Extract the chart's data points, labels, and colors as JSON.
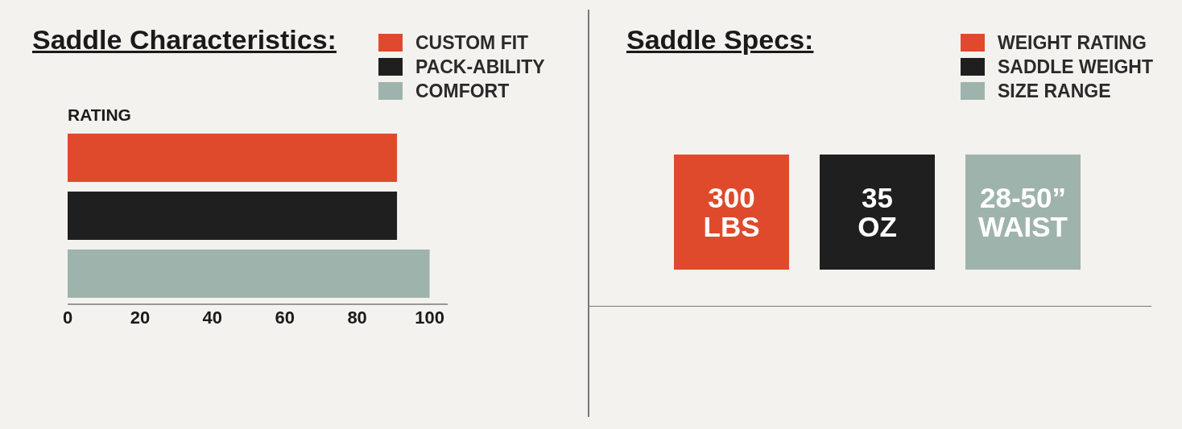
{
  "chart_data": [
    {
      "type": "bar",
      "title": "Saddle Characteristics:",
      "xlabel": "RATING",
      "orientation": "horizontal",
      "categories": [
        null
      ],
      "series": [
        {
          "name": "CUSTOM FIT",
          "color": "#e04a2c",
          "values": [
            91
          ]
        },
        {
          "name": "PACK-ABILITY",
          "color": "#1f1f1f",
          "values": [
            91
          ]
        },
        {
          "name": "COMFORT",
          "color": "#9fb3ad",
          "values": [
            100
          ]
        }
      ],
      "xlim": [
        0,
        105
      ],
      "xticks": [
        0,
        20,
        40,
        60,
        80,
        100
      ],
      "grid": false,
      "legend": "top right"
    },
    {
      "type": "other",
      "title": "Saddle Specs:",
      "categories": [
        "WEIGHT RATING",
        "SADDLE WEIGHT",
        "SIZE RANGE"
      ],
      "colors": [
        "#e04a2c",
        "#1f1f1f",
        "#9fb3ad"
      ],
      "value_labels": [
        "300 LBS",
        "35 OZ",
        "28-50” WAIST"
      ]
    }
  ]
}
